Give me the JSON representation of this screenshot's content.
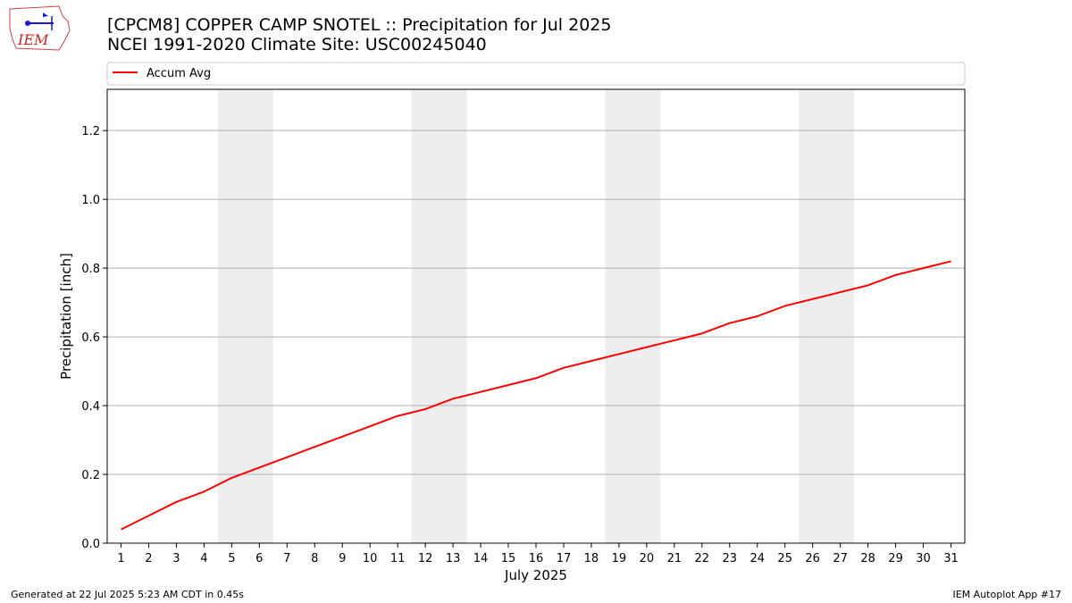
{
  "header": {
    "title_line1": "[CPCM8] COPPER CAMP SNOTEL :: Precipitation for Jul 2025",
    "title_line2": "NCEI 1991-2020 Climate Site: USC00245040",
    "logo_text": "IEM"
  },
  "footer": {
    "generated": "Generated at 22 Jul 2025 5:23 AM CDT in 0.45s",
    "app": "IEM Autoplot App #17"
  },
  "chart_data": {
    "type": "line",
    "xlabel": "July 2025",
    "ylabel": "Precipitation [inch]",
    "xlim": [
      0.5,
      31.5
    ],
    "ylim": [
      0,
      1.32
    ],
    "yticks": [
      0.0,
      0.2,
      0.4,
      0.6,
      0.8,
      1.0,
      1.2
    ],
    "ytick_labels": [
      "0.0",
      "0.2",
      "0.4",
      "0.6",
      "0.8",
      "1.0",
      "1.2"
    ],
    "x": [
      1,
      2,
      3,
      4,
      5,
      6,
      7,
      8,
      9,
      10,
      11,
      12,
      13,
      14,
      15,
      16,
      17,
      18,
      19,
      20,
      21,
      22,
      23,
      24,
      25,
      26,
      27,
      28,
      29,
      30,
      31
    ],
    "xtick_labels": [
      "1",
      "2",
      "3",
      "4",
      "5",
      "6",
      "7",
      "8",
      "9",
      "10",
      "11",
      "12",
      "13",
      "14",
      "15",
      "16",
      "17",
      "18",
      "19",
      "20",
      "21",
      "22",
      "23",
      "24",
      "25",
      "26",
      "27",
      "28",
      "29",
      "30",
      "31"
    ],
    "series": [
      {
        "name": "Accum Avg",
        "color": "#ff0000",
        "values": [
          0.04,
          0.08,
          0.12,
          0.15,
          0.19,
          0.22,
          0.25,
          0.28,
          0.31,
          0.34,
          0.37,
          0.39,
          0.42,
          0.44,
          0.46,
          0.48,
          0.51,
          0.53,
          0.55,
          0.57,
          0.59,
          0.61,
          0.64,
          0.66,
          0.69,
          0.71,
          0.73,
          0.75,
          0.78,
          0.8,
          0.82
        ]
      }
    ],
    "weekend_bands": [
      [
        5,
        6
      ],
      [
        12,
        13
      ],
      [
        19,
        20
      ],
      [
        26,
        27
      ]
    ],
    "band_color": "#eeeeee",
    "grid": "y",
    "legend_placement": "top"
  }
}
